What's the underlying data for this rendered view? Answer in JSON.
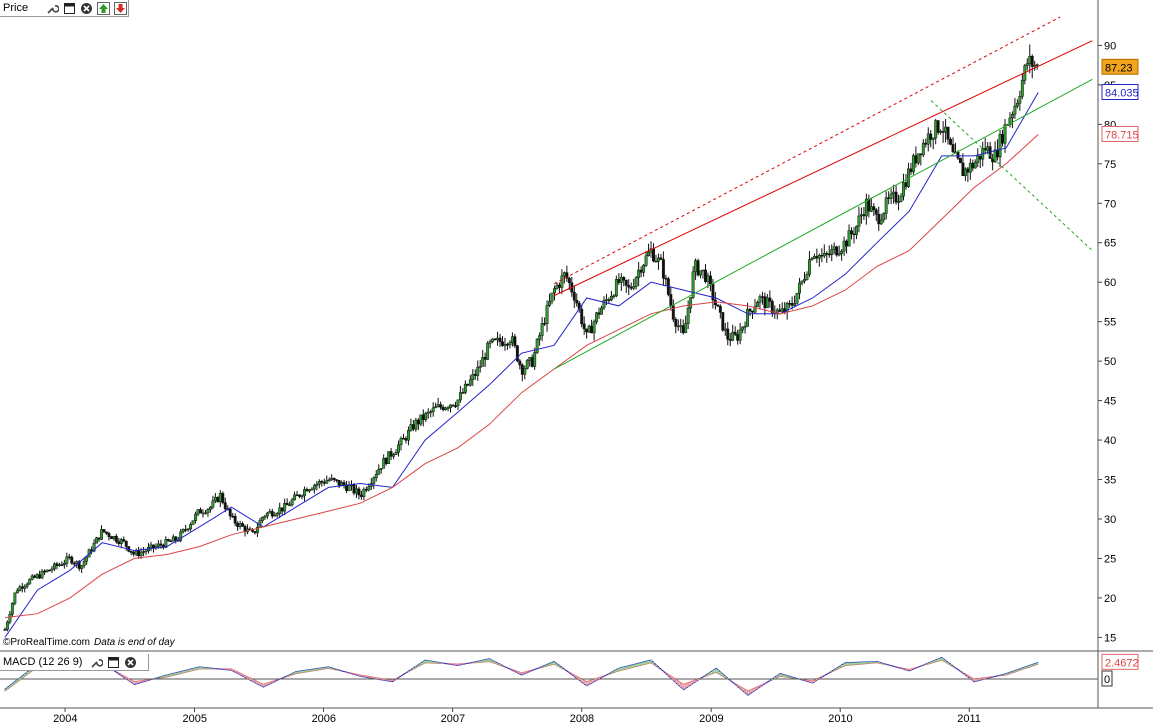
{
  "toolbar": {
    "price_label": "Price",
    "macd_label": "MACD (12 26 9)"
  },
  "icons": [
    "wrench-icon",
    "window-icon",
    "close-icon",
    "move-up-icon",
    "move-down-icon"
  ],
  "footer": {
    "source": "©ProRealTime.com",
    "note": "Data is end of day"
  },
  "colors": {
    "candle_up": "#2e9e2e",
    "candle_down": "#111111",
    "ma_fast": "#2222cc",
    "ma_slow": "#dd4444",
    "trend_red": "#dd0000",
    "trend_green": "#22aa22",
    "macd_line": "#2222cc",
    "signal_line": "#dd6666",
    "price_badge": "#f2a51c"
  },
  "chart_data": [
    {
      "type": "line",
      "name": "Price",
      "x_axis": {
        "ticks": [
          "2004",
          "2005",
          "2006",
          "2007",
          "2008",
          "2009",
          "2010",
          "2011"
        ]
      },
      "y_axis": {
        "ticks": [
          15,
          20,
          25,
          30,
          35,
          40,
          45,
          50,
          55,
          60,
          65,
          70,
          75,
          80,
          85,
          90
        ],
        "min": 13.4,
        "max": 93.6,
        "scale": "linear",
        "side": "right"
      },
      "date_range": [
        "2003-07-01",
        "2011-12-31"
      ],
      "series": [
        {
          "role": "weekly price (candles)",
          "points": [
            [
              "2003-07",
              16
            ],
            [
              "2003-08",
              21
            ],
            [
              "2003-09",
              22
            ],
            [
              "2003-11",
              23.5
            ],
            [
              "2004-01",
              25
            ],
            [
              "2004-02",
              24
            ],
            [
              "2004-04",
              28.5
            ],
            [
              "2004-06",
              27
            ],
            [
              "2004-07",
              25.5
            ],
            [
              "2004-09",
              26.5
            ],
            [
              "2004-11",
              27.5
            ],
            [
              "2005-01",
              31
            ],
            [
              "2005-02",
              31.5
            ],
            [
              "2005-03",
              33
            ],
            [
              "2005-04",
              30
            ],
            [
              "2005-06",
              28
            ],
            [
              "2005-07",
              30.5
            ],
            [
              "2005-09",
              31.5
            ],
            [
              "2005-11",
              34
            ],
            [
              "2006-01",
              35
            ],
            [
              "2006-03",
              34
            ],
            [
              "2006-04",
              33
            ],
            [
              "2006-05",
              35
            ],
            [
              "2006-06",
              37
            ],
            [
              "2006-08",
              40
            ],
            [
              "2006-09",
              42
            ],
            [
              "2006-11",
              44
            ],
            [
              "2007-01",
              45
            ],
            [
              "2007-03",
              49
            ],
            [
              "2007-04",
              52
            ],
            [
              "2007-06",
              53
            ],
            [
              "2007-07",
              49
            ],
            [
              "2007-08",
              50
            ],
            [
              "2007-09",
              55
            ],
            [
              "2007-10",
              59
            ],
            [
              "2007-11",
              61
            ],
            [
              "2007-12",
              58
            ],
            [
              "2008-01",
              53
            ],
            [
              "2008-02",
              56
            ],
            [
              "2008-03",
              58
            ],
            [
              "2008-04",
              60
            ],
            [
              "2008-05",
              59
            ],
            [
              "2008-06",
              62
            ],
            [
              "2008-07",
              64
            ],
            [
              "2008-08",
              62
            ],
            [
              "2008-09",
              56
            ],
            [
              "2008-10",
              53
            ],
            [
              "2008-11",
              62
            ],
            [
              "2008-12",
              61
            ],
            [
              "2009-01",
              57
            ],
            [
              "2009-02",
              53
            ],
            [
              "2009-03",
              53
            ],
            [
              "2009-04",
              56
            ],
            [
              "2009-05",
              58
            ],
            [
              "2009-06",
              57
            ],
            [
              "2009-07",
              56
            ],
            [
              "2009-08",
              57
            ],
            [
              "2009-09",
              60
            ],
            [
              "2009-10",
              64
            ],
            [
              "2009-11",
              63
            ],
            [
              "2009-12",
              64
            ],
            [
              "2010-01",
              65
            ],
            [
              "2010-02",
              67
            ],
            [
              "2010-03",
              70
            ],
            [
              "2010-04",
              68
            ],
            [
              "2010-05",
              70
            ],
            [
              "2010-06",
              71
            ],
            [
              "2010-07",
              74
            ],
            [
              "2010-08",
              77
            ],
            [
              "2010-09",
              79
            ],
            [
              "2010-10",
              80
            ],
            [
              "2010-11",
              76
            ],
            [
              "2010-12",
              74
            ],
            [
              "2011-01",
              75
            ],
            [
              "2011-02",
              77
            ],
            [
              "2011-03",
              76
            ],
            [
              "2011-04",
              80
            ],
            [
              "2011-05",
              83
            ],
            [
              "2011-06",
              88
            ],
            [
              "2011-07",
              87.23
            ]
          ]
        },
        {
          "role": "moving average (blue)",
          "points": [
            [
              "2003-07",
              15
            ],
            [
              "2003-10",
              21
            ],
            [
              "2004-01",
              23.5
            ],
            [
              "2004-04",
              27
            ],
            [
              "2004-07",
              26
            ],
            [
              "2004-10",
              26.5
            ],
            [
              "2005-01",
              29
            ],
            [
              "2005-04",
              31.5
            ],
            [
              "2005-07",
              29
            ],
            [
              "2005-10",
              31.5
            ],
            [
              "2006-01",
              34
            ],
            [
              "2006-04",
              34.5
            ],
            [
              "2006-07",
              34
            ],
            [
              "2006-10",
              40
            ],
            [
              "2007-01",
              43.5
            ],
            [
              "2007-04",
              47
            ],
            [
              "2007-07",
              51
            ],
            [
              "2007-10",
              52
            ],
            [
              "2008-01",
              58
            ],
            [
              "2008-04",
              57
            ],
            [
              "2008-07",
              60
            ],
            [
              "2008-10",
              59
            ],
            [
              "2009-01",
              58
            ],
            [
              "2009-04",
              56
            ],
            [
              "2009-07",
              56
            ],
            [
              "2009-10",
              58
            ],
            [
              "2010-01",
              61
            ],
            [
              "2010-04",
              65
            ],
            [
              "2010-07",
              69
            ],
            [
              "2010-10",
              76
            ],
            [
              "2011-01",
              76
            ],
            [
              "2011-04",
              77
            ],
            [
              "2011-07",
              84.035
            ]
          ]
        },
        {
          "role": "moving average (red)",
          "points": [
            [
              "2003-07",
              17.5
            ],
            [
              "2003-10",
              18
            ],
            [
              "2004-01",
              20
            ],
            [
              "2004-04",
              23
            ],
            [
              "2004-07",
              25
            ],
            [
              "2004-10",
              25.5
            ],
            [
              "2005-01",
              26.5
            ],
            [
              "2005-04",
              28
            ],
            [
              "2005-07",
              29
            ],
            [
              "2005-10",
              30
            ],
            [
              "2006-01",
              31
            ],
            [
              "2006-04",
              32
            ],
            [
              "2006-07",
              34
            ],
            [
              "2006-10",
              37
            ],
            [
              "2007-01",
              39
            ],
            [
              "2007-04",
              42
            ],
            [
              "2007-07",
              46
            ],
            [
              "2007-10",
              49
            ],
            [
              "2008-01",
              52
            ],
            [
              "2008-04",
              54
            ],
            [
              "2008-07",
              56
            ],
            [
              "2008-10",
              57
            ],
            [
              "2009-01",
              57.5
            ],
            [
              "2009-04",
              57
            ],
            [
              "2009-07",
              56
            ],
            [
              "2009-10",
              57
            ],
            [
              "2010-01",
              59
            ],
            [
              "2010-04",
              62
            ],
            [
              "2010-07",
              64
            ],
            [
              "2010-10",
              68
            ],
            [
              "2011-01",
              72
            ],
            [
              "2011-04",
              75
            ],
            [
              "2011-07",
              78.715
            ]
          ]
        }
      ],
      "trendlines": [
        {
          "color": "red",
          "style": "solid",
          "from": [
            "2007-10",
            58.3
          ],
          "to": [
            "2011-12",
            90.6
          ]
        },
        {
          "color": "red",
          "style": "dashed",
          "from": [
            "2007-10",
            59.8
          ],
          "to": [
            "2011-09",
            93.6
          ]
        },
        {
          "color": "green",
          "style": "solid",
          "from": [
            "2007-10",
            49
          ],
          "to": [
            "2011-12",
            85.7
          ]
        },
        {
          "color": "green",
          "style": "dashed",
          "from": [
            "2010-09",
            83
          ],
          "to": [
            "2011-12",
            64
          ]
        }
      ],
      "price_labels": [
        {
          "text": "87.23",
          "value": 87.23,
          "style": "orange badge"
        },
        {
          "text": "84.035",
          "value": 84.035,
          "style": "blue box"
        },
        {
          "text": "78.715",
          "value": 78.715,
          "style": "red box"
        }
      ],
      "grid": false
    },
    {
      "type": "line",
      "name": "MACD (12 26 9)",
      "y_axis": {
        "ticks": [
          "0"
        ],
        "min": -4,
        "max": 4
      },
      "labels": [
        {
          "text": "2.4672",
          "value": 2.4672
        },
        {
          "text": "0",
          "value": 0
        }
      ],
      "series": [
        {
          "role": "macd",
          "points": [
            [
              "2003-07",
              -1.5
            ],
            [
              "2003-10",
              2.2
            ],
            [
              "2004-01",
              2
            ],
            [
              "2004-04",
              2.4
            ],
            [
              "2004-07",
              -0.8
            ],
            [
              "2004-10",
              0.6
            ],
            [
              "2005-01",
              1.8
            ],
            [
              "2005-04",
              1.3
            ],
            [
              "2005-07",
              -1.2
            ],
            [
              "2005-10",
              1.1
            ],
            [
              "2006-01",
              1.8
            ],
            [
              "2006-04",
              0.4
            ],
            [
              "2006-07",
              -0.4
            ],
            [
              "2006-10",
              2.8
            ],
            [
              "2007-01",
              2
            ],
            [
              "2007-04",
              3
            ],
            [
              "2007-07",
              0.6
            ],
            [
              "2007-10",
              2.6
            ],
            [
              "2008-01",
              -1
            ],
            [
              "2008-04",
              1.6
            ],
            [
              "2008-07",
              2.8
            ],
            [
              "2008-10",
              -1.6
            ],
            [
              "2009-01",
              1.6
            ],
            [
              "2009-04",
              -2.4
            ],
            [
              "2009-07",
              0.8
            ],
            [
              "2009-10",
              -0.6
            ],
            [
              "2010-01",
              2.4
            ],
            [
              "2010-04",
              2.6
            ],
            [
              "2010-07",
              1.2
            ],
            [
              "2010-10",
              3.2
            ],
            [
              "2011-01",
              -0.4
            ],
            [
              "2011-04",
              0.8
            ],
            [
              "2011-07",
              2.4672
            ]
          ]
        },
        {
          "role": "signal",
          "points": [
            [
              "2003-07",
              -1.8
            ],
            [
              "2003-10",
              1.8
            ],
            [
              "2004-01",
              2.1
            ],
            [
              "2004-04",
              2.2
            ],
            [
              "2004-07",
              -0.4
            ],
            [
              "2004-10",
              0.3
            ],
            [
              "2005-01",
              1.5
            ],
            [
              "2005-04",
              1.5
            ],
            [
              "2005-07",
              -0.8
            ],
            [
              "2005-10",
              0.8
            ],
            [
              "2006-01",
              1.6
            ],
            [
              "2006-04",
              0.6
            ],
            [
              "2006-07",
              -0.2
            ],
            [
              "2006-10",
              2.4
            ],
            [
              "2007-01",
              2.2
            ],
            [
              "2007-04",
              2.6
            ],
            [
              "2007-07",
              0.9
            ],
            [
              "2007-10",
              2.2
            ],
            [
              "2008-01",
              -0.4
            ],
            [
              "2008-04",
              1.2
            ],
            [
              "2008-07",
              2.4
            ],
            [
              "2008-10",
              -0.8
            ],
            [
              "2009-01",
              1
            ],
            [
              "2009-04",
              -1.8
            ],
            [
              "2009-07",
              0.4
            ],
            [
              "2009-10",
              -0.3
            ],
            [
              "2010-01",
              2
            ],
            [
              "2010-04",
              2.4
            ],
            [
              "2010-07",
              1.4
            ],
            [
              "2010-10",
              2.8
            ],
            [
              "2011-01",
              0
            ],
            [
              "2011-04",
              0.6
            ],
            [
              "2011-07",
              2.2
            ]
          ]
        }
      ]
    }
  ]
}
